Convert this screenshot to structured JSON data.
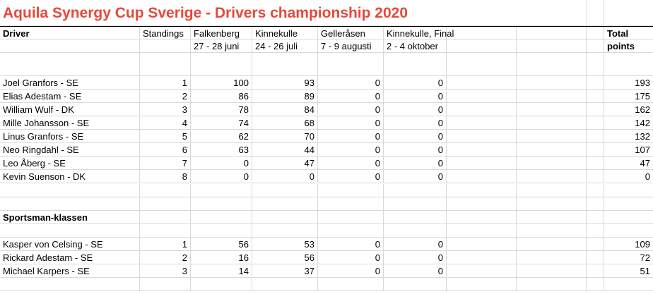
{
  "title": "Aquila Synergy Cup Sverige - Drivers championship 2020",
  "headers": {
    "driver": "Driver",
    "standings": "Standings",
    "races": [
      {
        "name": "Falkenberg",
        "dates": "27 - 28 juni"
      },
      {
        "name": "Kinnekulle",
        "dates": "24 - 26 juli"
      },
      {
        "name": "Gelleråsen",
        "dates": "7 - 9 augusti"
      },
      {
        "name": "Kinnekulle, Final",
        "dates": "2 - 4 oktober"
      }
    ],
    "total_line1": "Total",
    "total_line2": "points"
  },
  "main_drivers": [
    {
      "name": "Joel Granfors - SE",
      "standing": "1",
      "r1": "100",
      "r2": "93",
      "r3": "0",
      "r4": "0",
      "total": "193"
    },
    {
      "name": "Elias Adestam - SE",
      "standing": "2",
      "r1": "86",
      "r2": "89",
      "r3": "0",
      "r4": "0",
      "total": "175"
    },
    {
      "name": "William Wulf - DK",
      "standing": "3",
      "r1": "78",
      "r2": "84",
      "r3": "0",
      "r4": "0",
      "total": "162"
    },
    {
      "name": "Mille Johansson - SE",
      "standing": "4",
      "r1": "74",
      "r2": "68",
      "r3": "0",
      "r4": "0",
      "total": "142"
    },
    {
      "name": "Linus Granfors - SE",
      "standing": "5",
      "r1": "62",
      "r2": "70",
      "r3": "0",
      "r4": "0",
      "total": "132"
    },
    {
      "name": "Neo Ringdahl - SE",
      "standing": "6",
      "r1": "63",
      "r2": "44",
      "r3": "0",
      "r4": "0",
      "total": "107"
    },
    {
      "name": "Leo Åberg - SE",
      "standing": "7",
      "r1": "0",
      "r2": "47",
      "r3": "0",
      "r4": "0",
      "total": "47"
    },
    {
      "name": "Kevin Suenson - DK",
      "standing": "8",
      "r1": "0",
      "r2": "0",
      "r3": "0",
      "r4": "0",
      "total": "0"
    }
  ],
  "sportsman_heading": "Sportsman-klassen",
  "sportsman_drivers": [
    {
      "name": "Kasper von Celsing - SE",
      "standing": "1",
      "r1": "56",
      "r2": "53",
      "r3": "0",
      "r4": "0",
      "total": "109"
    },
    {
      "name": "Rickard Adestam - SE",
      "standing": "2",
      "r1": "16",
      "r2": "56",
      "r3": "0",
      "r4": "0",
      "total": "72"
    },
    {
      "name": "Michael Karpers - SE",
      "standing": "3",
      "r1": "14",
      "r2": "37",
      "r3": "0",
      "r4": "0",
      "total": "51"
    }
  ],
  "colors": {
    "title": "#e8483a",
    "grid": "#d9d9d9"
  }
}
